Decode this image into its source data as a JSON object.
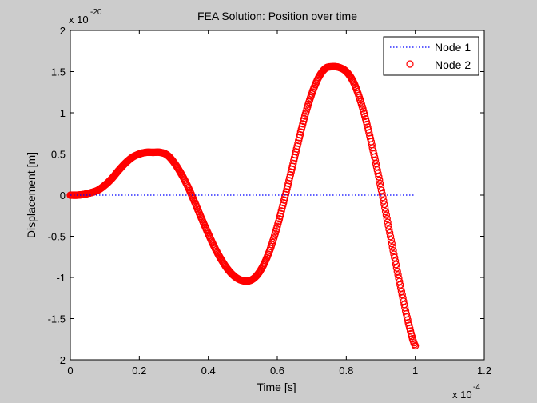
{
  "window": {
    "background": "#cccccc"
  },
  "chart_data": {
    "type": "line",
    "title": "FEA Solution: Position over time",
    "xlabel": "Time [s]",
    "ylabel": "Displacement [m]",
    "x_exponent_text": "x 10",
    "x_exponent_power": "-4",
    "y_exponent_text": "x 10",
    "y_exponent_power": "-20",
    "x_multiplier": 0.0001,
    "y_multiplier": 1e-20,
    "xlim": [
      0,
      1.2
    ],
    "ylim": [
      -2,
      2
    ],
    "x_ticks": [
      0,
      0.2,
      0.4,
      0.6,
      0.8,
      1,
      1.2
    ],
    "x_tick_labels": [
      "0",
      "0.2",
      "0.4",
      "0.6",
      "0.8",
      "1",
      "1.2"
    ],
    "y_ticks": [
      -2,
      -1.5,
      -1,
      -0.5,
      0,
      0.5,
      1,
      1.5,
      2
    ],
    "y_tick_labels": [
      "-2",
      "-1.5",
      "-1",
      "-0.5",
      "0",
      "0.5",
      "1",
      "1.5",
      "2"
    ],
    "grid": false,
    "legend_position": "top-right",
    "series": [
      {
        "name": "Node 1",
        "style": "dotted",
        "color": "#0000ff",
        "x": [
          0,
          1
        ],
        "y": [
          0,
          0
        ]
      },
      {
        "name": "Node 2",
        "style": "circle-markers",
        "color": "#ff0000",
        "x": [
          0,
          0.02,
          0.04,
          0.06,
          0.08,
          0.1,
          0.12,
          0.14,
          0.16,
          0.18,
          0.2,
          0.22,
          0.24,
          0.26,
          0.28,
          0.3,
          0.32,
          0.34,
          0.36,
          0.38,
          0.4,
          0.42,
          0.44,
          0.46,
          0.48,
          0.5,
          0.52,
          0.54,
          0.56,
          0.58,
          0.6,
          0.62,
          0.64,
          0.66,
          0.68,
          0.7,
          0.72,
          0.74,
          0.76,
          0.78,
          0.8,
          0.82,
          0.84,
          0.86,
          0.88,
          0.9,
          0.92,
          0.94,
          0.96,
          0.98,
          1.0
        ],
        "y": [
          0,
          0,
          0.01,
          0.03,
          0.06,
          0.12,
          0.2,
          0.3,
          0.39,
          0.46,
          0.5,
          0.52,
          0.52,
          0.52,
          0.49,
          0.4,
          0.27,
          0.11,
          -0.08,
          -0.28,
          -0.47,
          -0.65,
          -0.8,
          -0.92,
          -1.0,
          -1.04,
          -1.04,
          -0.98,
          -0.85,
          -0.65,
          -0.38,
          -0.06,
          0.28,
          0.63,
          0.96,
          1.23,
          1.43,
          1.54,
          1.56,
          1.55,
          1.5,
          1.38,
          1.16,
          0.86,
          0.5,
          0.1,
          -0.33,
          -0.76,
          -1.17,
          -1.55,
          -1.83
        ]
      }
    ]
  }
}
